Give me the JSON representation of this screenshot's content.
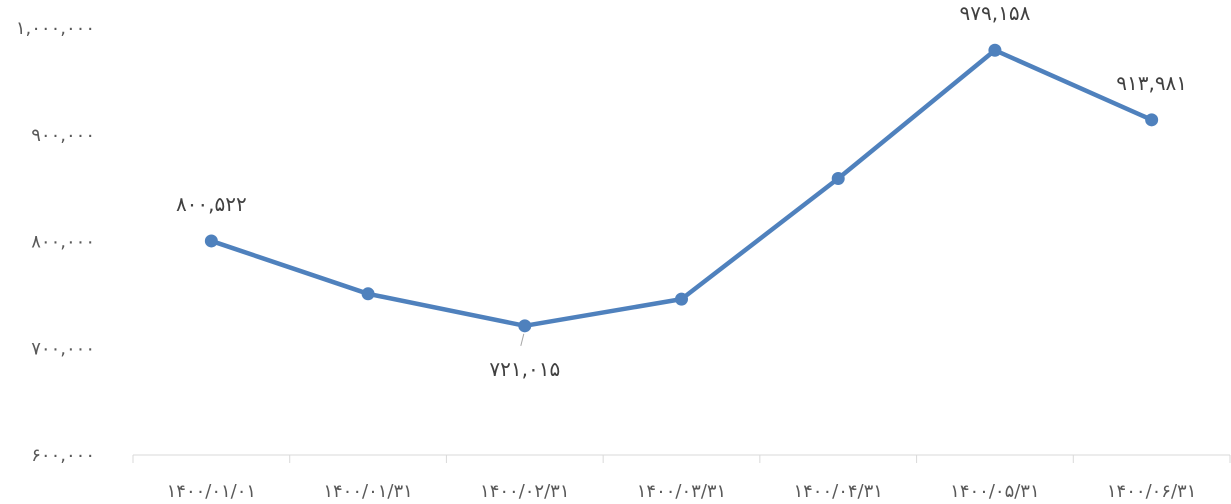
{
  "chart_data": {
    "type": "line",
    "title": "",
    "xlabel": "",
    "ylabel": "",
    "categories": [
      "۱۴۰۰/۰۱/۰۱",
      "۱۴۰۰/۰۱/۳۱",
      "۱۴۰۰/۰۲/۳۱",
      "۱۴۰۰/۰۳/۳۱",
      "۱۴۰۰/۰۴/۳۱",
      "۱۴۰۰/۰۵/۳۱",
      "۱۴۰۰/۰۶/۳۱"
    ],
    "series": [
      {
        "name": "",
        "color": "#4f81bd",
        "values": [
          800522,
          751000,
          721015,
          746000,
          859000,
          979158,
          913981
        ]
      }
    ],
    "ylim": [
      600000,
      1000000
    ],
    "yticks": [
      {
        "value": 600000,
        "label": "۶۰۰,۰۰۰"
      },
      {
        "value": 700000,
        "label": "۷۰۰,۰۰۰"
      },
      {
        "value": 800000,
        "label": "۸۰۰,۰۰۰"
      },
      {
        "value": 900000,
        "label": "۹۰۰,۰۰۰"
      },
      {
        "value": 1000000,
        "label": "۱,۰۰۰,۰۰۰"
      }
    ],
    "data_labels": [
      {
        "index": 0,
        "text": "۸۰۰,۵۲۲",
        "position": "above"
      },
      {
        "index": 2,
        "text": "۷۲۱,۰۱۵",
        "position": "below"
      },
      {
        "index": 5,
        "text": "۹۷۹,۱۵۸",
        "position": "above"
      },
      {
        "index": 6,
        "text": "۹۱۳,۹۸۱",
        "position": "above"
      }
    ],
    "grid": false,
    "legend": "none",
    "axis_color": "#d9d9d9"
  }
}
